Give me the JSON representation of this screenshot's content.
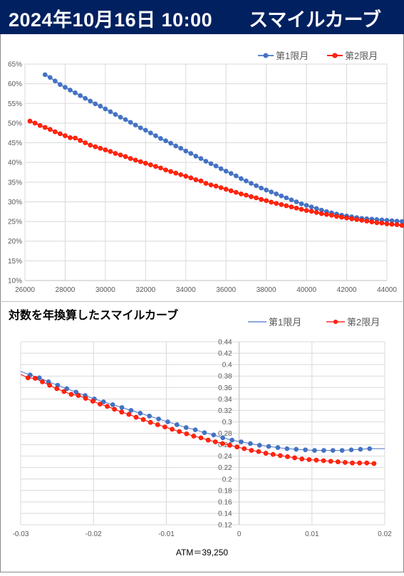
{
  "header": {
    "date": "2024年10月16日 10:00",
    "title": "スマイルカーブ"
  },
  "colors": {
    "banner": "#002060",
    "series1": "#4472C4",
    "series2": "#FF0000",
    "series2_marker": "#FF2A00",
    "grid": "#D9D9D9"
  },
  "chart_data": [
    {
      "type": "line",
      "title": "",
      "xlabel": "",
      "ylabel": "",
      "xlim": [
        26000,
        44000
      ],
      "ylim": [
        0.1,
        0.65
      ],
      "x_ticks": [
        "26000",
        "28000",
        "30000",
        "32000",
        "34000",
        "36000",
        "38000",
        "40000",
        "42000",
        "44000"
      ],
      "y_ticks": [
        "10%",
        "15%",
        "20%",
        "25%",
        "30%",
        "35%",
        "40%",
        "45%",
        "50%",
        "55%",
        "60%",
        "65%"
      ],
      "legend_position": "top-right",
      "grid": true,
      "series": [
        {
          "name": "第1限月",
          "x_start": 27000,
          "x_step": 250,
          "values": [
            0.623,
            0.616,
            0.607,
            0.598,
            0.591,
            0.584,
            0.577,
            0.57,
            0.563,
            0.556,
            0.549,
            0.543,
            0.536,
            0.529,
            0.522,
            0.515,
            0.509,
            0.502,
            0.495,
            0.488,
            0.482,
            0.475,
            0.468,
            0.461,
            0.455,
            0.449,
            0.442,
            0.436,
            0.429,
            0.423,
            0.416,
            0.41,
            0.403,
            0.397,
            0.391,
            0.384,
            0.378,
            0.372,
            0.366,
            0.359,
            0.353,
            0.347,
            0.341,
            0.335,
            0.33,
            0.325,
            0.32,
            0.315,
            0.31,
            0.305,
            0.3,
            0.295,
            0.291,
            0.287,
            0.283,
            0.279,
            0.275,
            0.272,
            0.269,
            0.266,
            0.264,
            0.262,
            0.26,
            0.258,
            0.257,
            0.256,
            0.255,
            0.254,
            0.253,
            0.252,
            0.251,
            0.25,
            0.249,
            0.249,
            0.249,
            0.249,
            0.25,
            0.25,
            0.251,
            0.251,
            0.252,
            0.252,
            0.253,
            0.253
          ]
        },
        {
          "name": "第2限月",
          "x_start": 26250,
          "x_step": 250,
          "values": [
            0.505,
            0.5,
            0.494,
            0.489,
            0.484,
            0.478,
            0.473,
            0.468,
            0.463,
            0.462,
            0.456,
            0.45,
            0.444,
            0.44,
            0.436,
            0.432,
            0.428,
            0.423,
            0.419,
            0.415,
            0.41,
            0.406,
            0.402,
            0.398,
            0.394,
            0.39,
            0.386,
            0.381,
            0.377,
            0.373,
            0.369,
            0.365,
            0.361,
            0.356,
            0.353,
            0.347,
            0.343,
            0.34,
            0.336,
            0.332,
            0.328,
            0.324,
            0.32,
            0.317,
            0.313,
            0.31,
            0.306,
            0.303,
            0.299,
            0.296,
            0.293,
            0.29,
            0.287,
            0.284,
            0.281,
            0.278,
            0.276,
            0.273,
            0.27,
            0.268,
            0.266,
            0.263,
            0.261,
            0.259,
            0.257,
            0.255,
            0.253,
            0.251,
            0.249,
            0.247,
            0.246,
            0.244,
            0.243,
            0.242,
            0.24,
            0.239,
            0.238,
            0.237,
            0.236,
            0.235,
            0.234,
            0.233,
            0.232,
            0.231,
            0.231,
            0.23,
            0.229,
            0.229,
            0.228,
            0.228,
            0.228,
            0.228,
            0.228,
            0.228,
            0.229
          ]
        }
      ]
    },
    {
      "type": "line",
      "title": "対数を年換算したスマイルカーブ",
      "xlabel": "ATM＝39,250",
      "ylabel": "",
      "xlim": [
        -0.03,
        0.02
      ],
      "ylim": [
        0.12,
        0.44
      ],
      "x_ticks": [
        "-0.03",
        "-0.02",
        "-0.01",
        "0",
        "0.01",
        "0.02"
      ],
      "y_ticks": [
        "0.12",
        "0.14",
        "0.16",
        "0.18",
        "0.2",
        "0.22",
        "0.24",
        "0.26",
        "0.28",
        "0.3",
        "0.32",
        "0.34",
        "0.36",
        "0.38",
        "0.4",
        "0.42",
        "0.44"
      ],
      "legend_position": "top-right",
      "grid": true,
      "series": [
        {
          "name": "第1限月",
          "x_start": -0.0287,
          "x_step": 0.00126,
          "values": [
            0.382,
            0.377,
            0.37,
            0.364,
            0.358,
            0.352,
            0.346,
            0.34,
            0.335,
            0.33,
            0.325,
            0.32,
            0.315,
            0.31,
            0.305,
            0.3,
            0.295,
            0.29,
            0.286,
            0.281,
            0.277,
            0.272,
            0.268,
            0.265,
            0.262,
            0.259,
            0.257,
            0.255,
            0.253,
            0.252,
            0.251,
            0.25,
            0.25,
            0.25,
            0.25,
            0.251,
            0.252,
            0.253
          ]
        },
        {
          "name": "第2限月",
          "x_start": -0.029,
          "x_step": 0.00099,
          "values": [
            0.377,
            0.376,
            0.37,
            0.364,
            0.358,
            0.353,
            0.348,
            0.346,
            0.341,
            0.336,
            0.331,
            0.327,
            0.322,
            0.317,
            0.313,
            0.308,
            0.304,
            0.299,
            0.295,
            0.291,
            0.287,
            0.283,
            0.279,
            0.275,
            0.272,
            0.268,
            0.265,
            0.262,
            0.259,
            0.256,
            0.253,
            0.25,
            0.248,
            0.245,
            0.243,
            0.241,
            0.239,
            0.237,
            0.235,
            0.234,
            0.233,
            0.232,
            0.231,
            0.23,
            0.229,
            0.228,
            0.228,
            0.228,
            0.227
          ]
        }
      ]
    }
  ]
}
